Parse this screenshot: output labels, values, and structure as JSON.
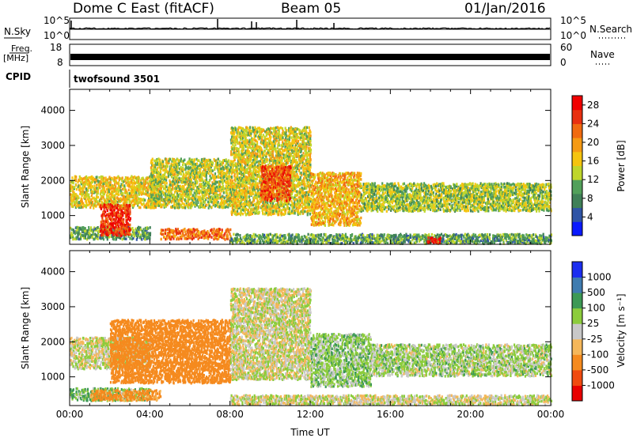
{
  "header": {
    "station": "Dome C East (fitACF)",
    "beam": "Beam 05",
    "date": "01/Jan/2016"
  },
  "top_panels": {
    "nsky_label": "N.Sky",
    "nsky_ticks_left": [
      "10^5",
      "10^0"
    ],
    "nsearch_ticks_right": [
      "10^5",
      "10^0"
    ],
    "nsearch_label": "N.Search",
    "freq_label": "Freq.",
    "freq_unit": "[MHz]",
    "freq_ticks": [
      "18",
      "8"
    ],
    "nave_ticks": [
      "60",
      "0"
    ],
    "nave_label": "Nave",
    "cpid_label": "CPID",
    "cpid_value": "twofsound 3501"
  },
  "colors": {
    "power_scale": [
      "#0a1aff",
      "#2f54a6",
      "#3f8057",
      "#52a05a",
      "#bfd62b",
      "#f5c40f",
      "#f59a14",
      "#f06a10",
      "#e83010",
      "#f00000"
    ],
    "velocity_scale": [
      "#e80000",
      "#f04a10",
      "#f58a1e",
      "#f5b75a",
      "#c8c8c8",
      "#8ccc3c",
      "#3d9955",
      "#3f7cb0",
      "#1b2ef0"
    ]
  },
  "chart_data": [
    {
      "type": "heatmap",
      "panel": "power",
      "xlabel": "",
      "ylabel": "Slant Range [km]",
      "y_ticks": [
        1000,
        2000,
        3000,
        4000
      ],
      "ylim": [
        180,
        4600
      ],
      "colorbar": {
        "label": "Power [dB]",
        "ticks": [
          4,
          8,
          12,
          16,
          20,
          24,
          28
        ],
        "range": [
          0,
          30
        ]
      },
      "regions": [
        {
          "t": [
            0.0,
            4.5
          ],
          "r": [
            1200,
            2100
          ],
          "v": 16
        },
        {
          "t": [
            0.0,
            4.0
          ],
          "r": [
            300,
            650
          ],
          "v": 10
        },
        {
          "t": [
            1.5,
            3.0
          ],
          "r": [
            400,
            1300
          ],
          "v": 26
        },
        {
          "t": [
            4.5,
            8.0
          ],
          "r": [
            300,
            600
          ],
          "v": 22
        },
        {
          "t": [
            4.0,
            8.0
          ],
          "r": [
            1200,
            2600
          ],
          "v": 14
        },
        {
          "t": [
            8.0,
            12.0
          ],
          "r": [
            1000,
            3500
          ],
          "v": 15
        },
        {
          "t": [
            9.5,
            11.0
          ],
          "r": [
            1400,
            2400
          ],
          "v": 24
        },
        {
          "t": [
            12.0,
            14.5
          ],
          "r": [
            700,
            2200
          ],
          "v": 18
        },
        {
          "t": [
            14.5,
            24.0
          ],
          "r": [
            1100,
            1900
          ],
          "v": 13
        },
        {
          "t": [
            8.0,
            24.0
          ],
          "r": [
            180,
            450
          ],
          "v": 10
        },
        {
          "t": [
            17.8,
            18.5
          ],
          "r": [
            180,
            350
          ],
          "v": 28
        }
      ]
    },
    {
      "type": "heatmap",
      "panel": "velocity",
      "xlabel": "Time UT",
      "ylabel": "Slant Range [km]",
      "x_ticks": [
        "00:00",
        "04:00",
        "08:00",
        "12:00",
        "16:00",
        "20:00",
        "00:00"
      ],
      "y_ticks": [
        1000,
        2000,
        3000,
        4000
      ],
      "ylim": [
        180,
        4600
      ],
      "colorbar": {
        "label": "Velocity [m s⁻¹]",
        "ticks": [
          "1000",
          "500",
          "100",
          "25",
          "-25",
          "-100",
          "-500",
          "-1000"
        ]
      },
      "regions": [
        {
          "t": [
            0.0,
            4.0
          ],
          "r": [
            1200,
            2100
          ],
          "v": 0
        },
        {
          "t": [
            0.0,
            4.0
          ],
          "r": [
            300,
            650
          ],
          "v": 80
        },
        {
          "t": [
            1.0,
            4.5
          ],
          "r": [
            300,
            600
          ],
          "v": -150
        },
        {
          "t": [
            2.0,
            8.0
          ],
          "r": [
            800,
            2600
          ],
          "v": -250
        },
        {
          "t": [
            8.0,
            12.0
          ],
          "r": [
            900,
            3500
          ],
          "v": 0
        },
        {
          "t": [
            12.0,
            15.0
          ],
          "r": [
            700,
            2200
          ],
          "v": 60
        },
        {
          "t": [
            15.0,
            24.0
          ],
          "r": [
            1000,
            1900
          ],
          "v": 40
        },
        {
          "t": [
            8.0,
            24.0
          ],
          "r": [
            180,
            450
          ],
          "v": 0
        }
      ]
    }
  ]
}
